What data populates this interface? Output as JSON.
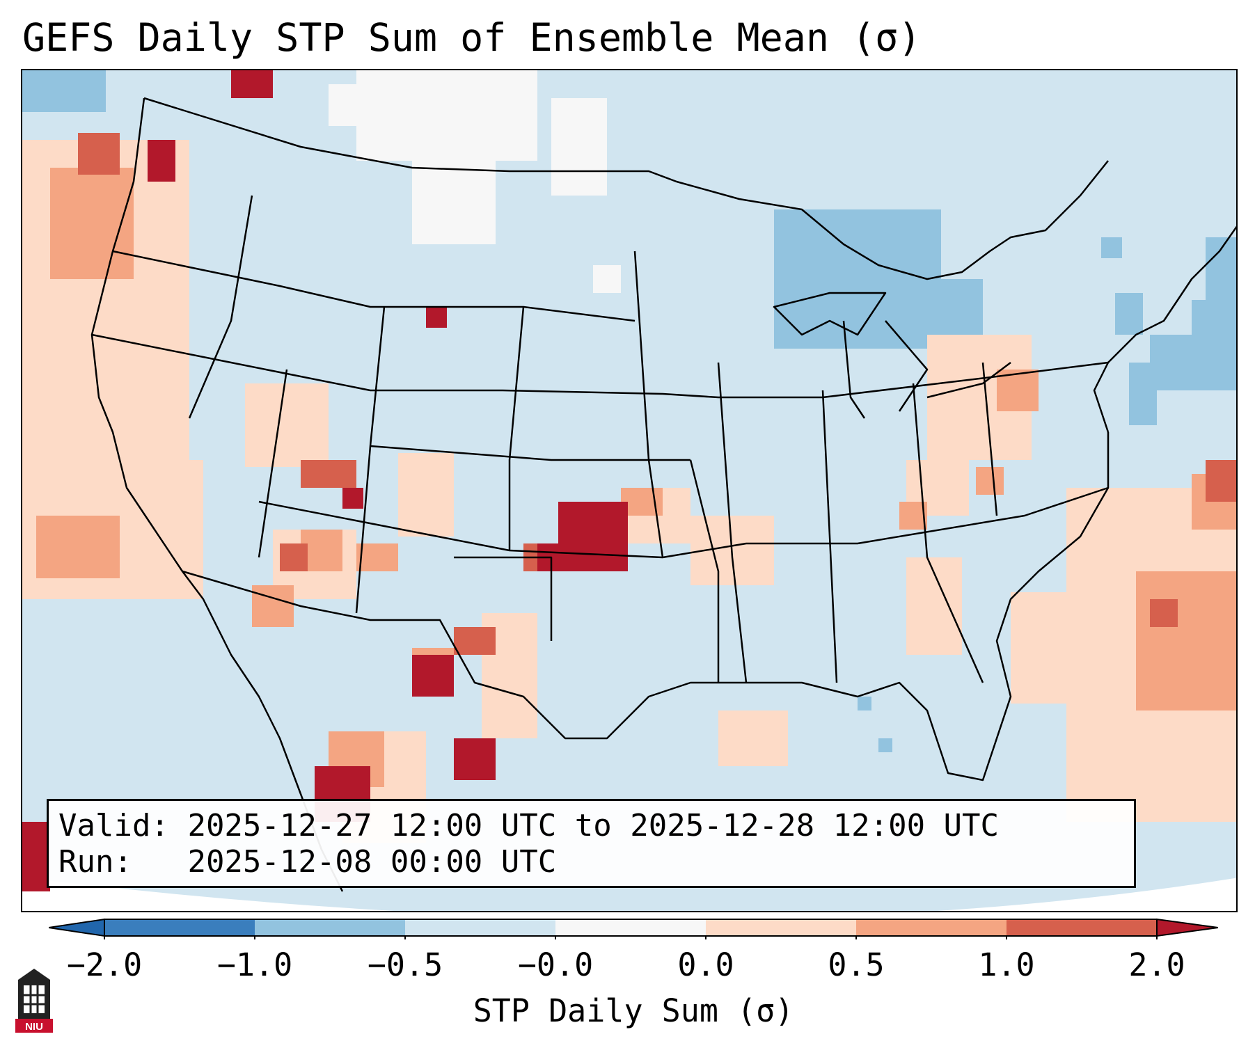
{
  "title": "GEFS Daily STP Sum of Ensemble Mean (σ)",
  "info": {
    "valid_label": "Valid:",
    "valid_value": "2025-12-27 12:00 UTC to 2025-12-28 12:00 UTC",
    "run_label": "Run:",
    "run_value": "2025-12-08 00:00 UTC"
  },
  "colorbar": {
    "label": "STP Daily Sum (σ)",
    "ticks": [
      "−2.0",
      "−1.0",
      "−0.5",
      "−0.0",
      "0.0",
      "0.5",
      "1.0",
      "2.0"
    ],
    "colors": [
      "#3a7ebd",
      "#92c3df",
      "#d1e5f0",
      "#f7f7f7",
      "#fddbc7",
      "#f4a582",
      "#d6604d",
      "#b2182b"
    ],
    "extend_low_color": "#2166ac",
    "extend_high_color": "#b2182b"
  },
  "map": {
    "background_color": "#d1e5f0",
    "border_color": "#000000"
  },
  "logo": {
    "text": "NIU",
    "color": "#c8102e"
  }
}
